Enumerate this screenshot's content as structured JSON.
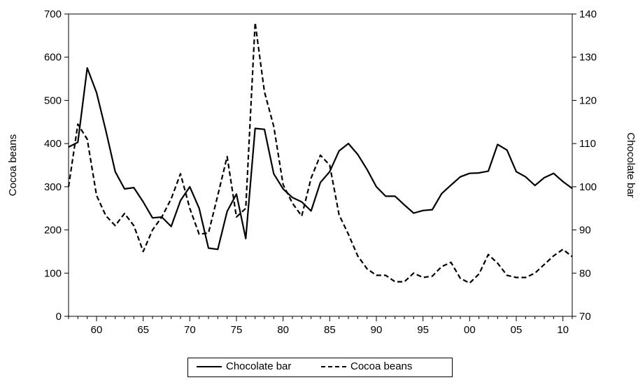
{
  "chart_data": {
    "type": "line",
    "title": "",
    "xlabel": "",
    "ylabel_left": "Cocoa beans",
    "ylabel_right": "Chocolate bar",
    "x": [
      1957,
      1958,
      1959,
      1960,
      1961,
      1962,
      1963,
      1964,
      1965,
      1966,
      1967,
      1968,
      1969,
      1970,
      1971,
      1972,
      1973,
      1974,
      1975,
      1976,
      1977,
      1978,
      1979,
      1980,
      1981,
      1982,
      1983,
      1984,
      1985,
      1986,
      1987,
      1988,
      1989,
      1990,
      1991,
      1992,
      1993,
      1994,
      1995,
      1996,
      1997,
      1998,
      1999,
      2000,
      2001,
      2002,
      2003,
      2004,
      2005,
      2006,
      2007,
      2008,
      2009,
      2010,
      2011
    ],
    "xlim": [
      1957,
      2011
    ],
    "x_ticks": [
      1960,
      1965,
      1970,
      1975,
      1980,
      1985,
      1990,
      1995,
      2000,
      2005,
      2010
    ],
    "x_tick_labels": [
      "60",
      "65",
      "70",
      "75",
      "80",
      "85",
      "90",
      "95",
      "00",
      "05",
      "10"
    ],
    "ylim_left": [
      0,
      700
    ],
    "y_ticks_left": [
      0,
      100,
      200,
      300,
      400,
      500,
      600,
      700
    ],
    "y_tick_labels_left": [
      "0",
      "100",
      "200",
      "300",
      "400",
      "500",
      "600",
      "700"
    ],
    "ylim_right": [
      70,
      140
    ],
    "y_ticks_right": [
      70,
      80,
      90,
      100,
      110,
      120,
      130,
      140
    ],
    "y_tick_labels_right": [
      "70",
      "80",
      "90",
      "100",
      "110",
      "120",
      "130",
      "140"
    ],
    "grid": false,
    "legend_position": "bottom-center",
    "series": [
      {
        "name": "Chocolate bar",
        "axis": "right",
        "style": "solid",
        "color": "#000000",
        "values": [
          109.2,
          110.3,
          127.5,
          121.8,
          113,
          103.5,
          99.5,
          99.8,
          96.5,
          92.8,
          93,
          90.8,
          96.8,
          100,
          95,
          85.8,
          85.5,
          94.3,
          98.3,
          88,
          113.5,
          113.3,
          103,
          99.5,
          97.5,
          96.5,
          94.4,
          101,
          103.5,
          108.3,
          110,
          107.5,
          104,
          100,
          97.8,
          97.8,
          95.8,
          93.9,
          94.5,
          94.7,
          98.4,
          100.4,
          102.3,
          103.1,
          103.2,
          103.6,
          109.8,
          108.5,
          103.5,
          102.3,
          100.3,
          102.1,
          103.1,
          101.2,
          99.6
        ]
      },
      {
        "name": "Cocoa beans",
        "axis": "left",
        "style": "dashed",
        "color": "#000000",
        "values": [
          300,
          445,
          410,
          280,
          233,
          210,
          238,
          210,
          150,
          200,
          230,
          272,
          330,
          250,
          190,
          193,
          280,
          370,
          230,
          250,
          680,
          520,
          440,
          305,
          262,
          232,
          320,
          373,
          350,
          235,
          190,
          140,
          110,
          95,
          95,
          80,
          80,
          100,
          90,
          93,
          115,
          125,
          88,
          77,
          98,
          143,
          123,
          95,
          90,
          90,
          100,
          120,
          140,
          155,
          138
        ]
      }
    ]
  }
}
